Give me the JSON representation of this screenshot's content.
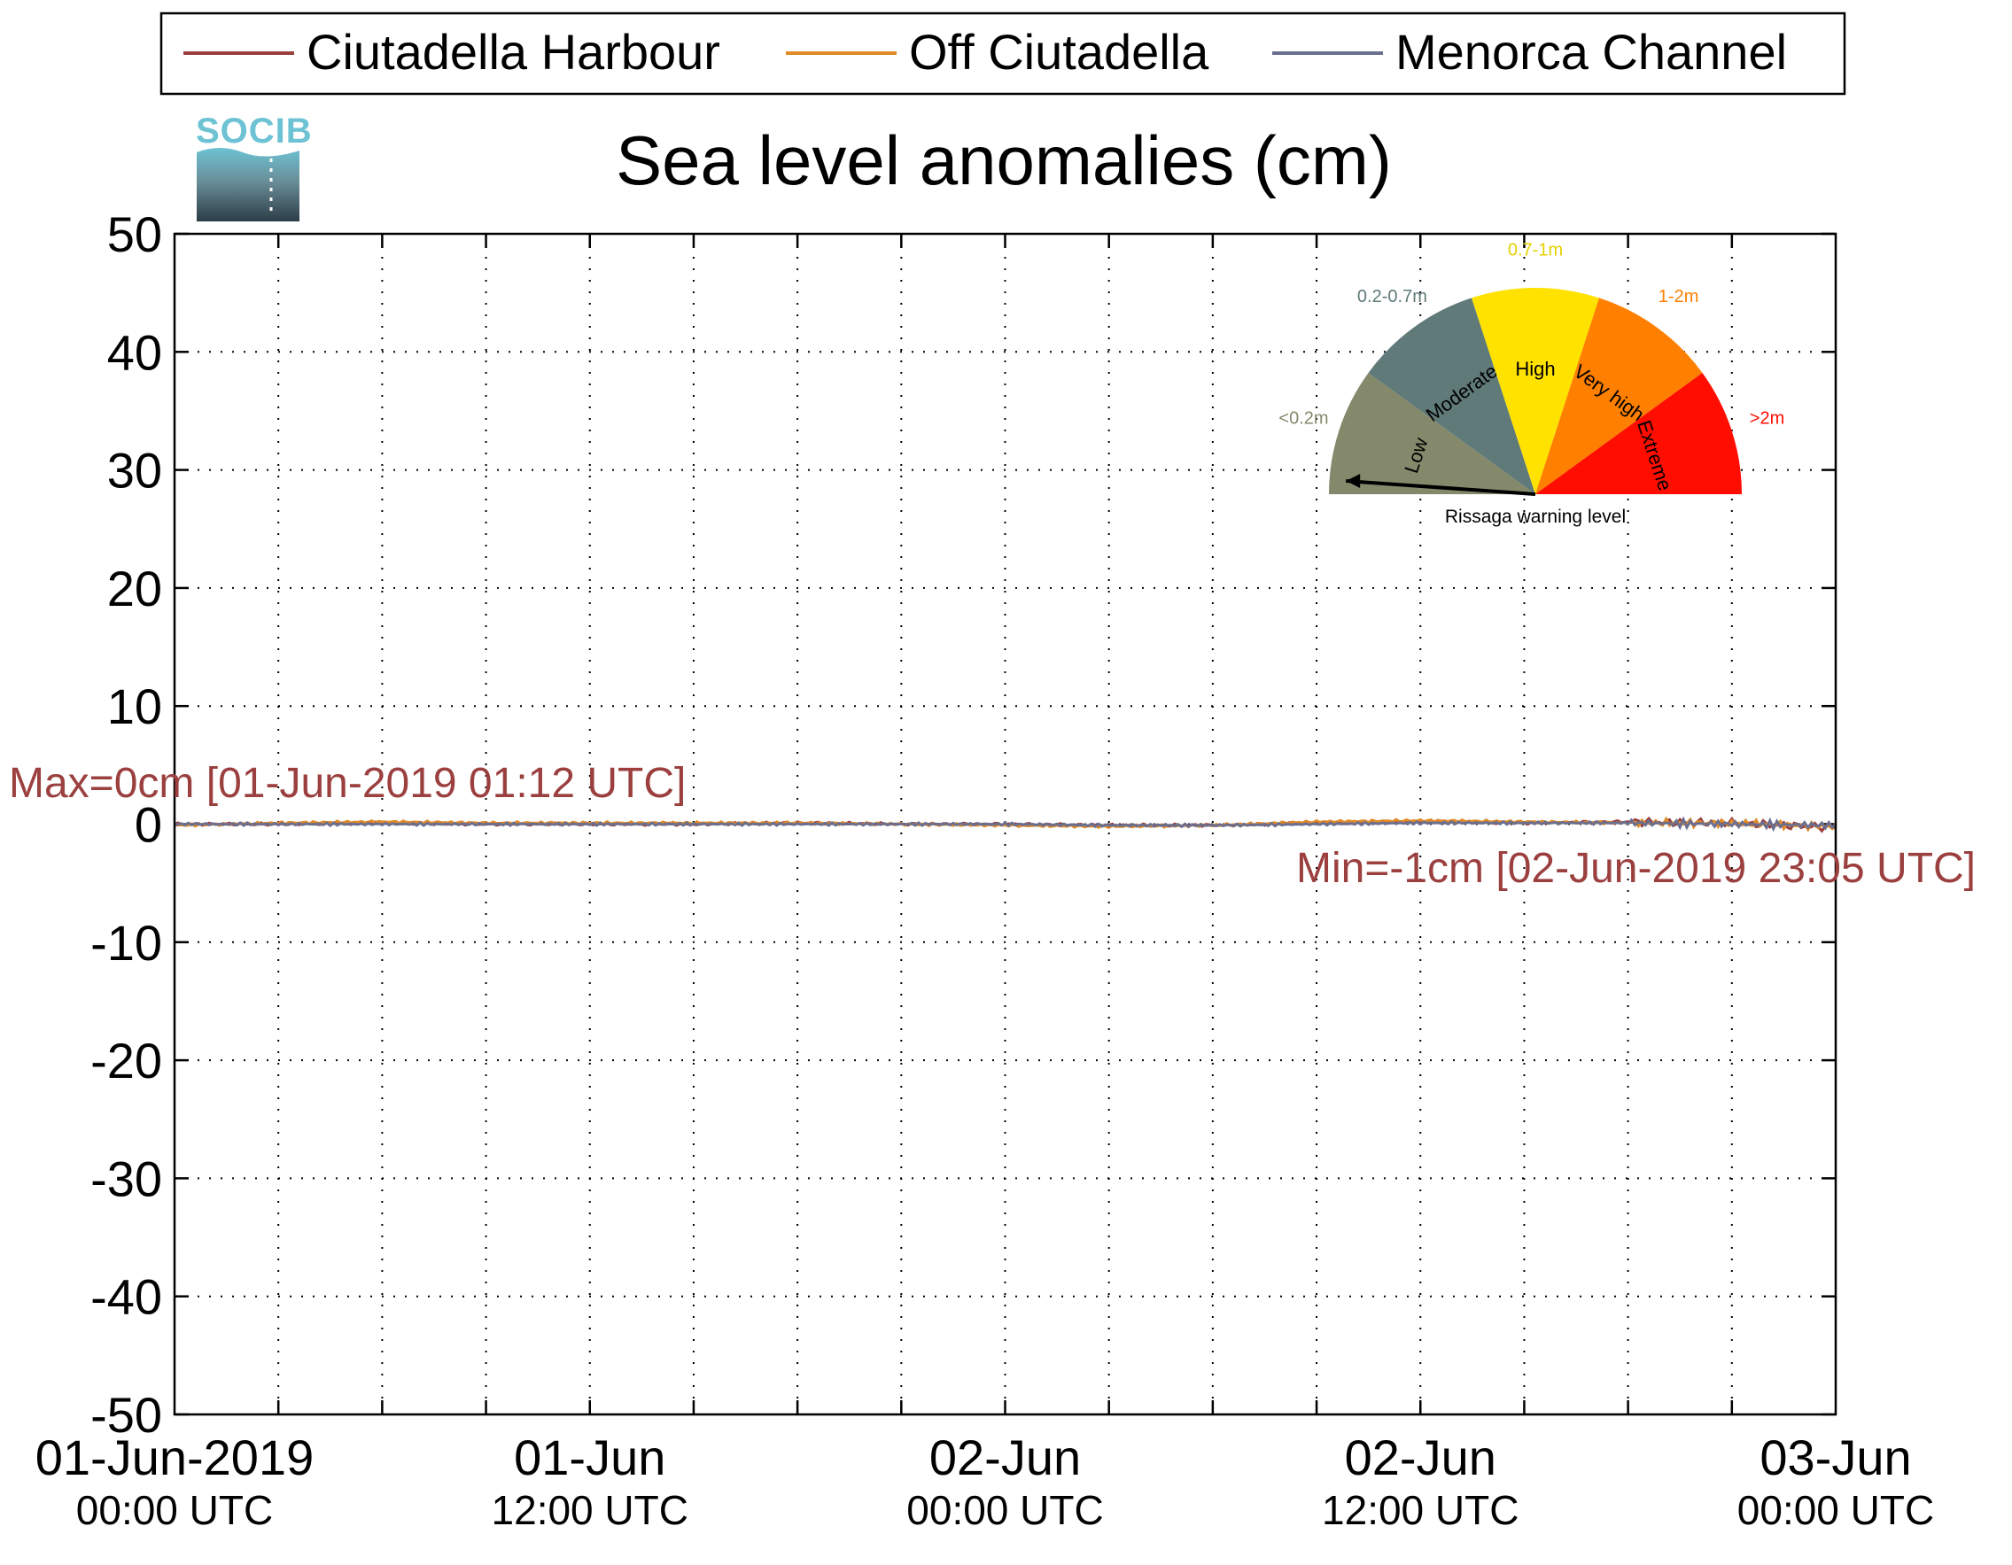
{
  "colors": {
    "ciutadella_harbour": "#9b3f3f",
    "off_ciutadella": "#e08a28",
    "menorca_channel": "#6b6f8f",
    "annotation": "#9b3f3f",
    "logo_text": "#6dc2d4"
  },
  "logo": {
    "text": "SOCIB"
  },
  "gauge": {
    "title": "Rissaga warning level",
    "needle_level": "Low",
    "sectors": [
      {
        "name": "Low",
        "range": "<0.2m",
        "color": "#85896c",
        "range_color": "#85896c"
      },
      {
        "name": "Moderate",
        "range": "0.2-0.7m",
        "color": "#5f7a78",
        "range_color": "#5f7a78"
      },
      {
        "name": "High",
        "range": "0.7-1m",
        "color": "#ffe200",
        "range_color": "#e6d000"
      },
      {
        "name": "Very high",
        "range": "1-2m",
        "color": "#ff8000",
        "range_color": "#ff8000"
      },
      {
        "name": "Extreme",
        "range": ">2m",
        "color": "#ff0d00",
        "range_color": "#ff0d00"
      }
    ]
  },
  "chart_data": {
    "type": "line",
    "title": "Sea level anomalies (cm)",
    "xlabel": "",
    "ylabel": "",
    "ylim": [
      -50,
      50
    ],
    "yticks": [
      -50,
      -40,
      -30,
      -20,
      -10,
      0,
      10,
      20,
      30,
      40,
      50
    ],
    "xlim": [
      "2019-06-01 00:00",
      "2019-06-03 00:00"
    ],
    "x_major_ticks": [
      {
        "label1": "01-Jun-2019",
        "label2": "00:00 UTC",
        "hours": 0
      },
      {
        "label1": "01-Jun",
        "label2": "12:00 UTC",
        "hours": 12
      },
      {
        "label1": "02-Jun",
        "label2": "00:00 UTC",
        "hours": 24
      },
      {
        "label1": "02-Jun",
        "label2": "12:00 UTC",
        "hours": 36
      },
      {
        "label1": "03-Jun",
        "label2": "00:00 UTC",
        "hours": 48
      }
    ],
    "x_minor_step_hours": 3,
    "grid": true,
    "legend_position": "top",
    "x_hours": [
      0,
      3,
      6,
      9,
      12,
      15,
      18,
      21,
      24,
      27,
      30,
      33,
      36,
      39,
      42,
      45,
      48
    ],
    "series": [
      {
        "name": "Ciutadella Harbour",
        "values": [
          0,
          0,
          0.1,
          0,
          0,
          0,
          0.1,
          0,
          0,
          -0.1,
          -0.1,
          0.1,
          0.2,
          0.1,
          0.2,
          0.1,
          -0.3
        ]
      },
      {
        "name": "Off Ciutadella",
        "values": [
          -0.1,
          0.1,
          0.2,
          0.1,
          0.1,
          0.1,
          0.1,
          0,
          -0.1,
          -0.2,
          -0.1,
          0.2,
          0.3,
          0.2,
          0.1,
          0.1,
          -0.2
        ]
      },
      {
        "name": "Menorca Channel",
        "values": [
          0,
          0,
          0,
          0,
          0,
          0,
          0,
          0,
          0,
          -0.1,
          -0.1,
          0,
          0.1,
          0.1,
          0.1,
          0,
          -0.1
        ]
      }
    ],
    "annotations": {
      "max_label": "Max=0cm [01-Jun-2019 01:12 UTC]",
      "min_label": "Min=-1cm [02-Jun-2019 23:05 UTC]"
    }
  }
}
